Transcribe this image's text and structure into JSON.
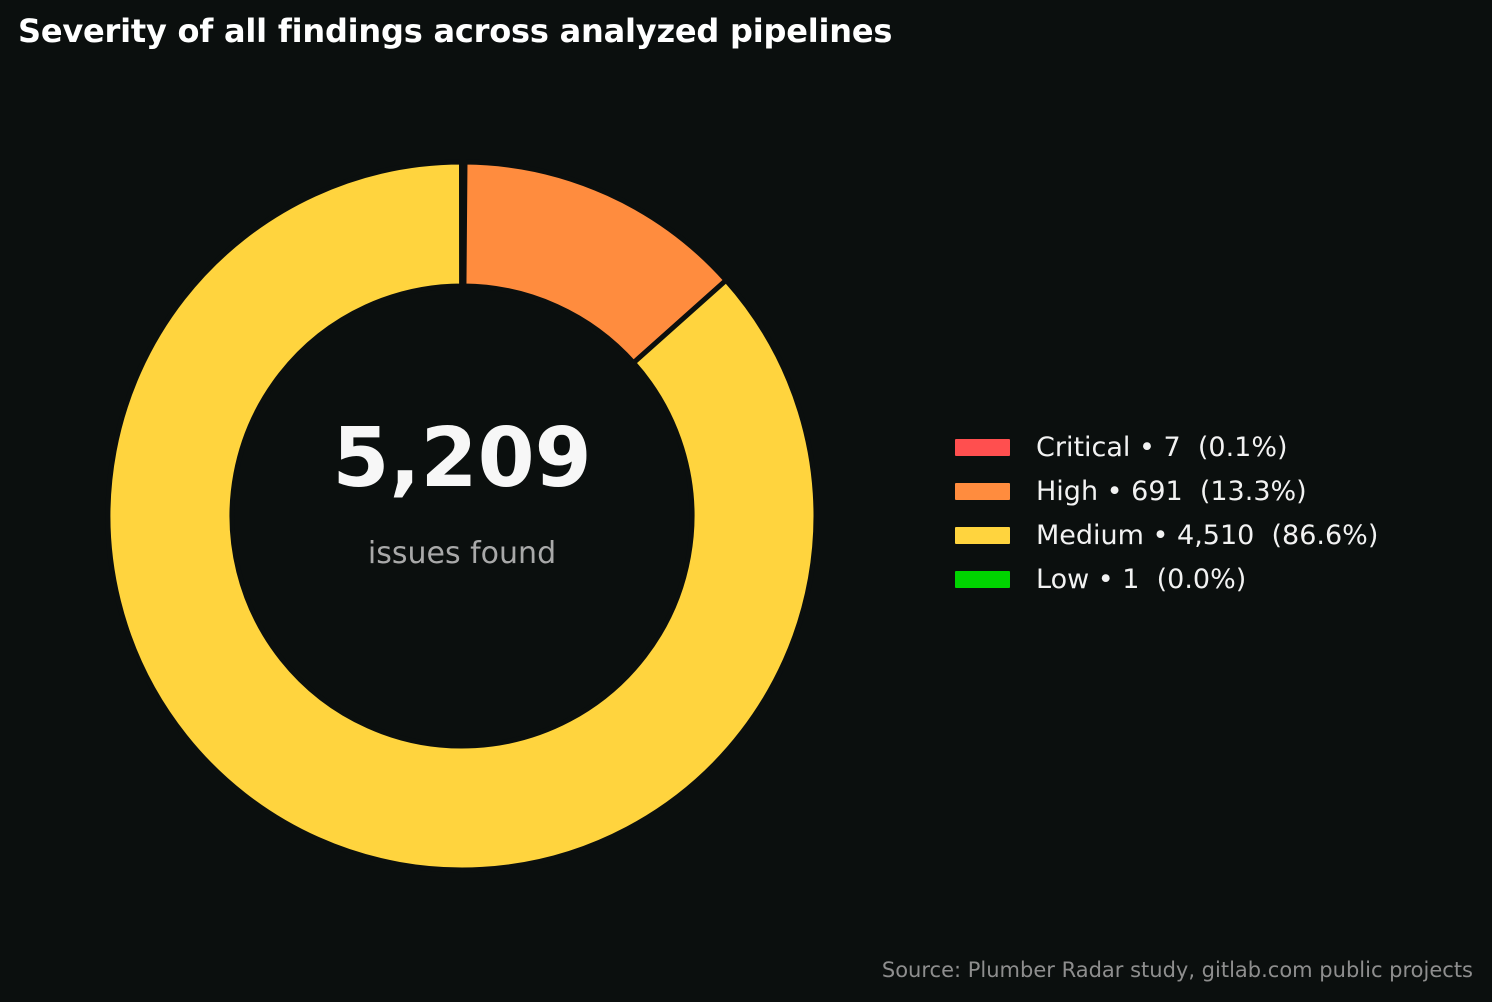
{
  "title": "Severity of all findings across analyzed pipelines",
  "center": {
    "value": "5,209",
    "label": "issues found"
  },
  "source": "Source: Plumber Radar study, gitlab.com public projects",
  "chart_data": {
    "type": "pie",
    "subtype": "donut",
    "title": "Severity of all findings across analyzed pipelines",
    "total": 5209,
    "total_label": "issues found",
    "legend_position": "right",
    "categories": [
      "Critical",
      "High",
      "Medium",
      "Low"
    ],
    "values": [
      7,
      691,
      4510,
      1
    ],
    "percentages": [
      "0.1%",
      "13.3%",
      "86.6%",
      "0.0%"
    ],
    "colors": [
      "#ff4f4f",
      "#ff8c3e",
      "#ffd43e",
      "#00d400"
    ],
    "legend": [
      {
        "label": "Critical • 7  (0.1%)",
        "color": "#ff4f4f"
      },
      {
        "label": "High • 691  (13.3%)",
        "color": "#ff8c3e"
      },
      {
        "label": "Medium • 4,510  (86.6%)",
        "color": "#ffd43e"
      },
      {
        "label": "Low • 1  (0.0%)",
        "color": "#00d400"
      }
    ]
  }
}
